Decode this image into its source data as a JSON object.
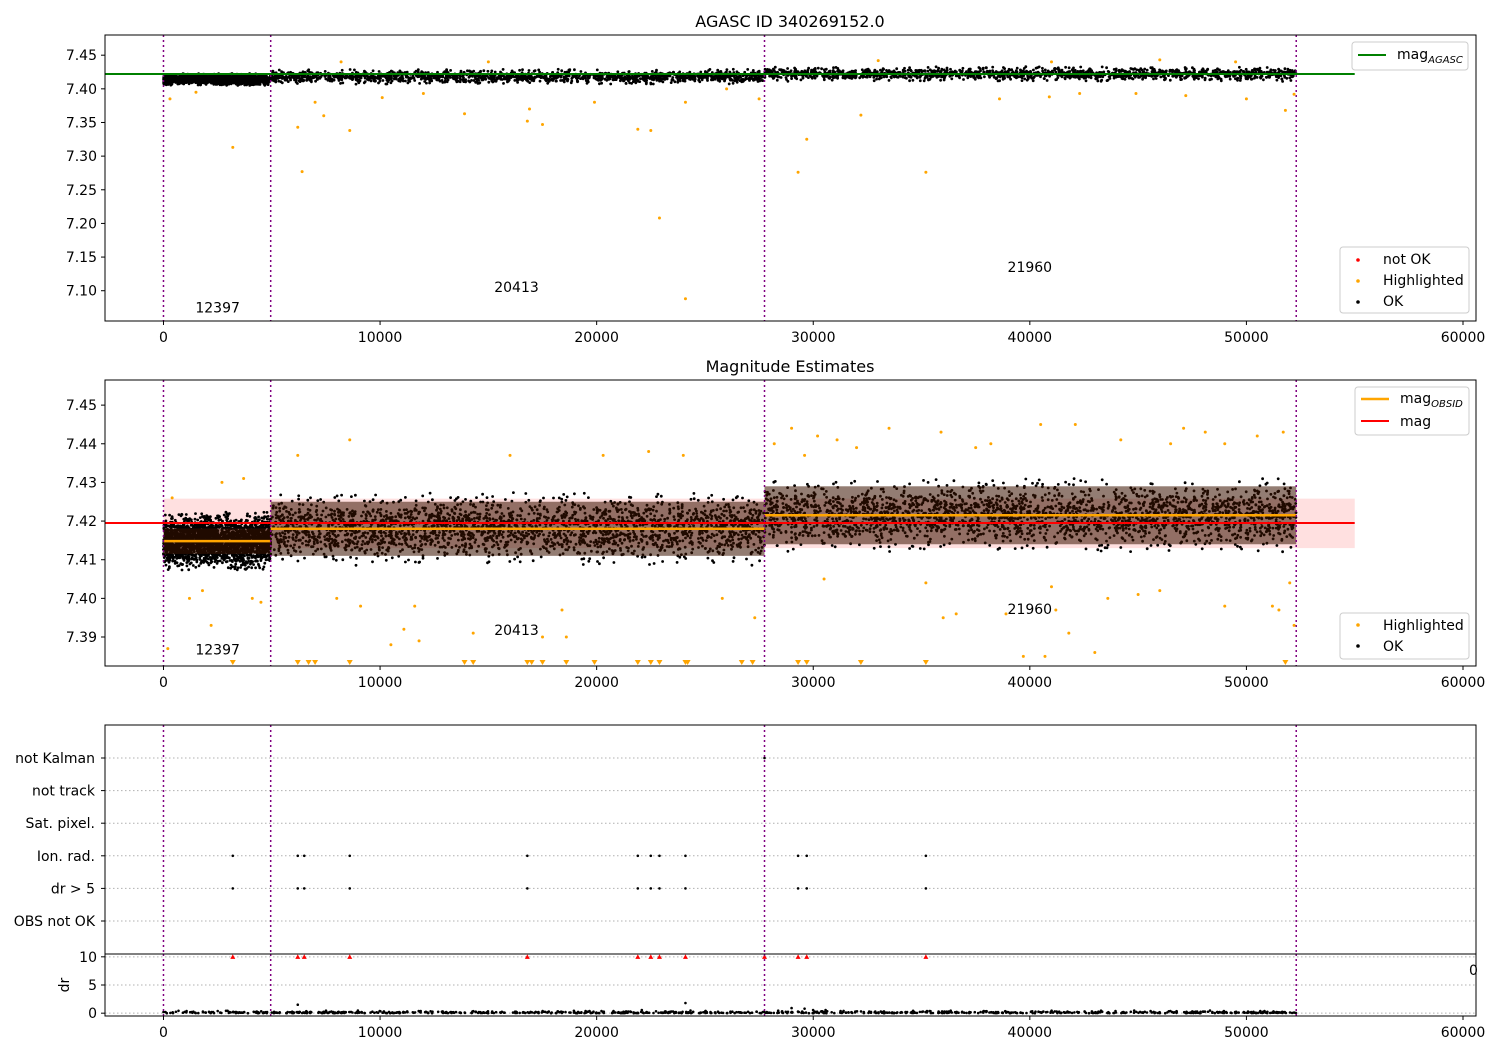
{
  "figure": {
    "colors": {
      "ok": "#000000",
      "highlighted": "#ffa500",
      "not_ok": "#ff0000",
      "mag_agasc": "#008000",
      "mag_obsid": "#ffa500",
      "mag": "#ff0000",
      "mag_band": "#ffcccc",
      "obsid_band": "#3a1200",
      "obs_boundary": "#800080",
      "grid": "#b0b0b0"
    },
    "obs_boundaries": [
      0,
      4950,
      27750,
      52300
    ],
    "obsid_labels": [
      {
        "text": "12397",
        "x": 2500
      },
      {
        "text": "20413",
        "x": 16300
      },
      {
        "text": "21960",
        "x": 40000
      }
    ]
  },
  "chart_data": [
    {
      "type": "scatter",
      "title": "AGASC ID 340269152.0",
      "xlim": [
        -2700,
        60600
      ],
      "ylim": [
        7.055,
        7.48
      ],
      "x_ticks": [
        0,
        10000,
        20000,
        30000,
        40000,
        50000,
        60000
      ],
      "y_ticks": [
        7.1,
        7.15,
        7.2,
        7.25,
        7.3,
        7.35,
        7.4,
        7.45
      ],
      "y_tick_labels": [
        "7.10",
        "7.15",
        "7.20",
        "7.25",
        "7.30",
        "7.35",
        "7.40",
        "7.45"
      ],
      "obsid_label_y": [
        7.068,
        7.098,
        7.128
      ],
      "lines": [
        {
          "name": "mag_AGASC",
          "label_main": "mag",
          "label_sub": "AGASC",
          "color": "#008000",
          "x": [
            -2700,
            55000
          ],
          "y": [
            7.422,
            7.422
          ]
        }
      ],
      "series": [
        {
          "name": "OK",
          "segments": [
            {
              "x": [
                0,
                4950
              ],
              "center": 7.414,
              "spread": 0.009
            },
            {
              "x": [
                4950,
                27750
              ],
              "center": 7.418,
              "spread": 0.011
            },
            {
              "x": [
                27750,
                52300
              ],
              "center": 7.422,
              "spread": 0.011
            }
          ]
        },
        {
          "name": "Highlighted",
          "points": [
            [
              3200,
              7.313
            ],
            [
              6200,
              7.343
            ],
            [
              6400,
              7.277
            ],
            [
              7000,
              7.38
            ],
            [
              7400,
              7.36
            ],
            [
              8600,
              7.338
            ],
            [
              10100,
              7.387
            ],
            [
              13900,
              7.363
            ],
            [
              16800,
              7.352
            ],
            [
              16900,
              7.37
            ],
            [
              17500,
              7.347
            ],
            [
              19900,
              7.38
            ],
            [
              21900,
              7.34
            ],
            [
              22500,
              7.338
            ],
            [
              22900,
              7.208
            ],
            [
              24100,
              7.088
            ],
            [
              24100,
              7.38
            ],
            [
              27500,
              7.385
            ],
            [
              29300,
              7.276
            ],
            [
              29700,
              7.325
            ],
            [
              32200,
              7.361
            ],
            [
              35200,
              7.276
            ],
            [
              38600,
              7.385
            ],
            [
              42300,
              7.393
            ],
            [
              47200,
              7.39
            ],
            [
              50000,
              7.385
            ],
            [
              51800,
              7.368
            ],
            [
              52200,
              7.392
            ],
            [
              300,
              7.385
            ],
            [
              1500,
              7.395
            ],
            [
              8200,
              7.44
            ],
            [
              15000,
              7.44
            ],
            [
              33000,
              7.442
            ],
            [
              41000,
              7.44
            ],
            [
              46000,
              7.443
            ],
            [
              49500,
              7.44
            ],
            [
              26000,
              7.4
            ],
            [
              40900,
              7.388
            ],
            [
              44900,
              7.393
            ],
            [
              12000,
              7.393
            ]
          ]
        },
        {
          "name": "not OK",
          "points": []
        }
      ],
      "legend_lines": {
        "placement": "top-right"
      },
      "legend_points": {
        "placement": "bottom-right",
        "entries": [
          "not OK",
          "Highlighted",
          "OK"
        ]
      }
    },
    {
      "type": "scatter",
      "title": "Magnitude Estimates",
      "xlim": [
        -2700,
        60600
      ],
      "ylim": [
        7.3825,
        7.4565
      ],
      "x_ticks": [
        0,
        10000,
        20000,
        30000,
        40000,
        50000,
        60000
      ],
      "y_ticks": [
        7.39,
        7.4,
        7.41,
        7.42,
        7.43,
        7.44,
        7.45
      ],
      "y_tick_labels": [
        "7.39",
        "7.40",
        "7.41",
        "7.42",
        "7.43",
        "7.44",
        "7.45"
      ],
      "obsid_label_y": [
        7.3855,
        7.3905,
        7.396
      ],
      "mag": 7.4195,
      "mag_band": [
        7.413,
        7.4258
      ],
      "obsid_means": [
        {
          "x": [
            0,
            4950
          ],
          "y": 7.4148,
          "band": [
            7.4115,
            7.4181
          ]
        },
        {
          "x": [
            4950,
            27750
          ],
          "y": 7.418,
          "band": [
            7.411,
            7.425
          ]
        },
        {
          "x": [
            27750,
            52300
          ],
          "y": 7.4215,
          "band": [
            7.414,
            7.429
          ]
        }
      ],
      "series": [
        {
          "name": "OK",
          "segments": [
            {
              "x": [
                0,
                4950
              ],
              "center": 7.4148,
              "spread": 0.0075
            },
            {
              "x": [
                4950,
                27750
              ],
              "center": 7.418,
              "spread": 0.0095
            },
            {
              "x": [
                27750,
                52300
              ],
              "center": 7.4215,
              "spread": 0.0095
            }
          ]
        },
        {
          "name": "Highlighted",
          "points": [
            [
              200,
              7.387
            ],
            [
              400,
              7.426
            ],
            [
              1200,
              7.4
            ],
            [
              1800,
              7.402
            ],
            [
              2200,
              7.393
            ],
            [
              2700,
              7.43
            ],
            [
              3700,
              7.431
            ],
            [
              4100,
              7.4
            ],
            [
              4500,
              7.399
            ],
            [
              6200,
              7.437
            ],
            [
              8000,
              7.4
            ],
            [
              8600,
              7.441
            ],
            [
              9100,
              7.398
            ],
            [
              10500,
              7.388
            ],
            [
              11100,
              7.392
            ],
            [
              11600,
              7.398
            ],
            [
              11800,
              7.389
            ],
            [
              14300,
              7.391
            ],
            [
              16000,
              7.437
            ],
            [
              17500,
              7.39
            ],
            [
              18400,
              7.397
            ],
            [
              18600,
              7.39
            ],
            [
              20300,
              7.437
            ],
            [
              22400,
              7.438
            ],
            [
              24000,
              7.437
            ],
            [
              25800,
              7.4
            ],
            [
              27300,
              7.395
            ],
            [
              28200,
              7.44
            ],
            [
              30500,
              7.405
            ],
            [
              35200,
              7.404
            ],
            [
              36000,
              7.395
            ],
            [
              36600,
              7.396
            ],
            [
              38900,
              7.396
            ],
            [
              39700,
              7.385
            ],
            [
              40700,
              7.385
            ],
            [
              41000,
              7.403
            ],
            [
              41200,
              7.397
            ],
            [
              41800,
              7.391
            ],
            [
              43000,
              7.386
            ],
            [
              43600,
              7.4
            ],
            [
              45000,
              7.401
            ],
            [
              46000,
              7.402
            ],
            [
              49000,
              7.398
            ],
            [
              51200,
              7.398
            ],
            [
              51500,
              7.397
            ],
            [
              52200,
              7.393
            ],
            [
              52000,
              7.404
            ],
            [
              29000,
              7.444
            ],
            [
              30200,
              7.442
            ],
            [
              31100,
              7.441
            ],
            [
              33500,
              7.444
            ],
            [
              35900,
              7.443
            ],
            [
              38200,
              7.44
            ],
            [
              40500,
              7.445
            ],
            [
              42100,
              7.445
            ],
            [
              44200,
              7.441
            ],
            [
              47100,
              7.444
            ],
            [
              48100,
              7.443
            ],
            [
              50500,
              7.442
            ],
            [
              51700,
              7.443
            ],
            [
              32000,
              7.439
            ],
            [
              37500,
              7.439
            ],
            [
              46500,
              7.44
            ],
            [
              29600,
              7.437
            ],
            [
              49000,
              7.44
            ]
          ]
        },
        {
          "name": "Highlighted (below range)",
          "x": [
            3200,
            6200,
            6700,
            7000,
            8600,
            13900,
            14300,
            16800,
            17000,
            17500,
            18600,
            19900,
            21900,
            22500,
            22900,
            24100,
            24200,
            26700,
            27200,
            29300,
            29700,
            32200,
            35200,
            51800
          ]
        }
      ],
      "legend_lines": {
        "placement": "top-right"
      },
      "legend_points": {
        "placement": "bottom-right",
        "entries": [
          "Highlighted",
          "OK"
        ]
      }
    },
    {
      "type": "scatter",
      "title": "",
      "xlim": [
        -2700,
        60600
      ],
      "categories": [
        "not Kalman",
        "not track",
        "Sat. pixel.",
        "Ion. rad.",
        "dr > 5",
        "OBS not OK"
      ],
      "flags": [
        {
          "category": "not Kalman",
          "x": [
            27750
          ]
        },
        {
          "category": "Ion. rad.",
          "x": [
            3200,
            6200,
            6500,
            8600,
            16800,
            21900,
            22500,
            22900,
            24100,
            29300,
            29700,
            35200
          ]
        },
        {
          "category": "dr > 5",
          "x": [
            3200,
            6200,
            6500,
            8600,
            16800,
            21900,
            22500,
            22900,
            24100,
            29300,
            29700,
            35200
          ]
        }
      ]
    },
    {
      "type": "scatter",
      "title": "",
      "xlim": [
        -2700,
        60600
      ],
      "ylim": [
        -0.5,
        10.5
      ],
      "ylabel": "dr",
      "x_ticks": [
        0,
        10000,
        20000,
        30000,
        40000,
        50000,
        60000
      ],
      "y_ticks": [
        0,
        5,
        10
      ],
      "y_tick_labels": [
        "0",
        "5",
        "10"
      ],
      "overlap_text": "0",
      "series": [
        {
          "name": "OK",
          "segments": [
            {
              "x": [
                0,
                52300
              ],
              "center": 0.2,
              "spread": 0.3
            }
          ]
        },
        {
          "name": "dr > 5",
          "x": [
            3200,
            6200,
            6500,
            8600,
            16800,
            21900,
            22500,
            22900,
            24100,
            27750,
            29300,
            29700,
            35200
          ],
          "y": 10
        }
      ],
      "outliers": [
        [
          6200,
          1.5
        ],
        [
          24100,
          1.8
        ],
        [
          29000,
          0.9
        ],
        [
          29600,
          0.8
        ]
      ]
    }
  ]
}
